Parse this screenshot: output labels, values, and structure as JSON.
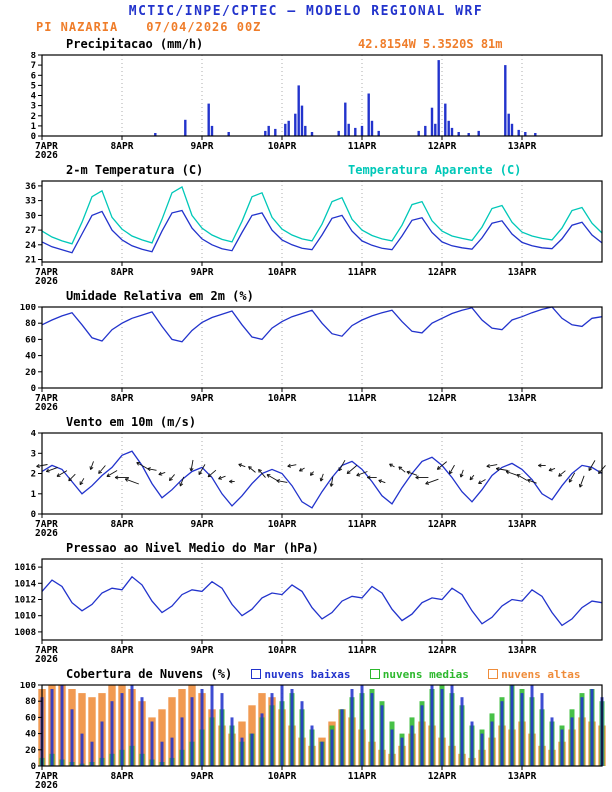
{
  "header": {
    "title": "MCTIC/INPE/CPTEC — MODELO REGIONAL WRF",
    "station": "PI NAZARIA",
    "run": "07/04/2026 00Z"
  },
  "colors": {
    "header_blue": "#2233cc",
    "orange": "#ef7d2a",
    "series_blue": "#2233cc",
    "apparent_cyan": "#00c8b8",
    "cloud_green": "#2db82d",
    "cloud_orange": "#ef8c3a"
  },
  "x_axis": {
    "hours_total": 168,
    "step_hours": 3,
    "day_labels": [
      "7APR",
      "8APR",
      "9APR",
      "10APR",
      "11APR",
      "12APR",
      "13APR"
    ],
    "year_label": "2026"
  },
  "chart_data": [
    {
      "id": "precipitation",
      "type": "bar",
      "title": "Precipitacao (mm/h)",
      "annotation": "42.8154W 5.3520S 81m",
      "ylim": [
        0,
        8
      ],
      "yticks": [
        0,
        1,
        2,
        3,
        4,
        5,
        6,
        7,
        8
      ],
      "color": "#2233cc",
      "bars": [
        [
          34,
          0.3
        ],
        [
          43,
          1.6
        ],
        [
          50,
          3.2
        ],
        [
          51,
          1.0
        ],
        [
          56,
          0.4
        ],
        [
          67,
          0.5
        ],
        [
          68,
          1.0
        ],
        [
          70,
          0.7
        ],
        [
          73,
          1.2
        ],
        [
          74,
          1.5
        ],
        [
          76,
          2.2
        ],
        [
          77,
          5.0
        ],
        [
          78,
          3.0
        ],
        [
          79,
          1.0
        ],
        [
          81,
          0.4
        ],
        [
          89,
          0.5
        ],
        [
          91,
          3.3
        ],
        [
          92,
          1.2
        ],
        [
          94,
          0.8
        ],
        [
          96,
          1.0
        ],
        [
          98,
          4.2
        ],
        [
          99,
          1.5
        ],
        [
          101,
          0.5
        ],
        [
          113,
          0.5
        ],
        [
          115,
          1.0
        ],
        [
          117,
          2.8
        ],
        [
          118,
          1.2
        ],
        [
          119,
          7.5
        ],
        [
          121,
          3.2
        ],
        [
          122,
          1.5
        ],
        [
          123,
          0.8
        ],
        [
          125,
          0.4
        ],
        [
          128,
          0.3
        ],
        [
          131,
          0.5
        ],
        [
          139,
          7.0
        ],
        [
          140,
          2.2
        ],
        [
          141,
          1.2
        ],
        [
          143,
          0.6
        ],
        [
          145,
          0.4
        ],
        [
          148,
          0.3
        ]
      ]
    },
    {
      "id": "temperature",
      "type": "line",
      "title": "2-m Temperatura (C)",
      "ylim": [
        20.5,
        37
      ],
      "yticks": [
        21,
        24,
        27,
        30,
        33,
        36
      ],
      "series": [
        {
          "name": "2-m Temperatura (C)",
          "color": "#2233cc",
          "values": [
            24.6,
            23.6,
            23.0,
            22.4,
            26.2,
            30.0,
            30.8,
            27.0,
            25.0,
            23.8,
            23.1,
            22.6,
            26.8,
            30.5,
            31.0,
            27.4,
            25.2,
            24.0,
            23.2,
            22.8,
            26.5,
            30.0,
            30.5,
            27.0,
            25.0,
            24.0,
            23.3,
            23.0,
            26.0,
            29.4,
            30.0,
            26.8,
            24.8,
            23.9,
            23.3,
            23.0,
            25.8,
            29.0,
            29.5,
            26.5,
            24.6,
            23.8,
            23.4,
            23.1,
            25.4,
            28.4,
            28.9,
            26.2,
            24.5,
            23.8,
            23.4,
            23.2,
            25.2,
            28.0,
            28.6,
            26.0,
            24.4
          ]
        },
        {
          "name": "Temperatura Aparente (C)",
          "color": "#00c8b8",
          "values": [
            26.8,
            25.6,
            24.8,
            24.2,
            28.6,
            33.8,
            35.0,
            29.6,
            27.2,
            25.8,
            25.0,
            24.4,
            29.2,
            34.6,
            35.8,
            30.0,
            27.4,
            26.0,
            25.1,
            24.6,
            28.8,
            33.8,
            34.6,
            29.6,
            27.2,
            26.0,
            25.2,
            24.8,
            28.2,
            32.8,
            33.6,
            29.2,
            27.0,
            25.9,
            25.2,
            24.8,
            28.0,
            32.2,
            32.8,
            28.9,
            26.8,
            25.8,
            25.3,
            24.9,
            27.6,
            31.4,
            32.0,
            28.6,
            26.6,
            25.8,
            25.3,
            25.0,
            27.4,
            31.0,
            31.6,
            28.4,
            26.4
          ]
        }
      ]
    },
    {
      "id": "humidity",
      "type": "line",
      "title": "Umidade Relativa em 2m (%)",
      "ylim": [
        0,
        100
      ],
      "yticks": [
        0,
        20,
        40,
        60,
        80,
        100
      ],
      "series": [
        {
          "name": "Umidade Relativa em 2m (%)",
          "color": "#2233cc",
          "values": [
            78,
            84,
            89,
            93,
            78,
            62,
            58,
            72,
            80,
            86,
            90,
            94,
            76,
            60,
            57,
            71,
            81,
            87,
            91,
            95,
            78,
            63,
            60,
            74,
            82,
            88,
            92,
            96,
            80,
            67,
            64,
            77,
            84,
            89,
            93,
            96,
            82,
            70,
            68,
            80,
            86,
            92,
            96,
            99,
            84,
            74,
            72,
            84,
            88,
            93,
            97,
            100,
            86,
            78,
            76,
            86,
            88
          ]
        }
      ]
    },
    {
      "id": "wind",
      "type": "wind",
      "title": "Vento em 10m (m/s)",
      "ylim": [
        0,
        4
      ],
      "yticks": [
        0,
        1,
        2,
        3,
        4
      ],
      "arrow_color": "#111111",
      "arrow_dirs_deg": [
        190,
        200,
        210,
        225,
        240,
        250,
        230,
        210,
        180,
        160,
        150,
        170,
        200,
        230,
        250,
        260,
        240,
        220,
        200,
        180,
        160,
        140,
        130,
        150,
        170,
        190,
        210,
        230,
        250,
        260,
        240,
        220,
        200,
        180,
        160,
        150,
        140,
        160,
        180,
        200,
        220,
        240,
        250,
        230,
        210,
        190,
        170,
        160,
        150,
        160,
        180,
        200,
        220,
        240,
        250,
        240,
        230
      ],
      "series": [
        {
          "name": "Vento em 10m (m/s)",
          "color": "#2233cc",
          "values": [
            2.1,
            2.4,
            2.2,
            1.6,
            1.0,
            1.4,
            1.9,
            2.3,
            2.9,
            3.1,
            2.4,
            1.5,
            0.8,
            1.2,
            1.7,
            2.1,
            2.3,
            1.8,
            1.0,
            0.4,
            0.9,
            1.5,
            2.0,
            2.2,
            2.0,
            1.4,
            0.6,
            0.3,
            1.1,
            1.8,
            2.4,
            2.6,
            2.2,
            1.6,
            0.9,
            0.5,
            1.3,
            2.0,
            2.6,
            2.8,
            2.4,
            1.8,
            1.1,
            0.6,
            1.2,
            1.9,
            2.3,
            2.5,
            2.2,
            1.7,
            1.0,
            0.7,
            1.4,
            2.0,
            2.4,
            2.3,
            2.0
          ]
        }
      ]
    },
    {
      "id": "pressure",
      "type": "line",
      "title": "Pressao ao Nivel Medio do Mar (hPa)",
      "ylim": [
        1007,
        1017
      ],
      "yticks": [
        1008,
        1010,
        1012,
        1014,
        1016
      ],
      "series": [
        {
          "name": "Pressao ao Nivel Medio do Mar (hPa)",
          "color": "#2233cc",
          "values": [
            1013.0,
            1014.4,
            1013.6,
            1011.6,
            1010.6,
            1011.4,
            1012.8,
            1013.4,
            1013.2,
            1014.8,
            1013.8,
            1011.8,
            1010.4,
            1011.2,
            1012.6,
            1013.2,
            1013.0,
            1014.2,
            1013.4,
            1011.4,
            1010.0,
            1010.8,
            1012.2,
            1012.8,
            1012.6,
            1013.8,
            1013.0,
            1011.0,
            1009.6,
            1010.4,
            1011.8,
            1012.4,
            1012.2,
            1013.6,
            1012.8,
            1010.8,
            1009.4,
            1010.2,
            1011.6,
            1012.2,
            1012.0,
            1013.4,
            1012.6,
            1010.6,
            1009.0,
            1009.8,
            1011.2,
            1012.0,
            1011.8,
            1013.2,
            1012.4,
            1010.4,
            1008.8,
            1009.6,
            1011.0,
            1011.8,
            1011.6
          ]
        }
      ]
    },
    {
      "id": "clouds",
      "type": "cloudbar",
      "title": "Cobertura de Nuvens (%)",
      "ylim": [
        0,
        100
      ],
      "yticks": [
        0,
        20,
        40,
        60,
        80,
        100
      ],
      "series": [
        {
          "name": "nuvens baixas",
          "color": "#2233cc",
          "values": [
            85,
            95,
            100,
            70,
            40,
            30,
            55,
            80,
            90,
            100,
            85,
            55,
            30,
            35,
            60,
            85,
            95,
            100,
            90,
            60,
            35,
            40,
            65,
            90,
            100,
            95,
            80,
            50,
            30,
            45,
            70,
            95,
            100,
            90,
            75,
            45,
            35,
            50,
            75,
            100,
            95,
            100,
            85,
            55,
            40,
            55,
            80,
            100,
            90,
            100,
            90,
            60,
            45,
            60,
            85,
            95,
            85
          ]
        },
        {
          "name": "nuvens medias",
          "color": "#2db82d",
          "values": [
            10,
            15,
            8,
            5,
            3,
            5,
            10,
            15,
            20,
            25,
            15,
            8,
            5,
            10,
            20,
            30,
            45,
            60,
            70,
            50,
            30,
            40,
            60,
            75,
            80,
            90,
            70,
            45,
            30,
            50,
            70,
            85,
            90,
            95,
            80,
            55,
            40,
            60,
            80,
            95,
            100,
            90,
            75,
            50,
            45,
            65,
            85,
            100,
            95,
            85,
            70,
            55,
            50,
            70,
            90,
            95,
            80
          ]
        },
        {
          "name": "nuvens altas",
          "color": "#ef8c3a",
          "values": [
            95,
            100,
            100,
            95,
            90,
            85,
            90,
            100,
            100,
            95,
            80,
            60,
            70,
            85,
            95,
            100,
            90,
            70,
            50,
            40,
            55,
            75,
            90,
            85,
            70,
            50,
            35,
            25,
            35,
            55,
            70,
            60,
            45,
            30,
            20,
            15,
            25,
            40,
            55,
            50,
            35,
            25,
            15,
            10,
            20,
            35,
            50,
            45,
            55,
            40,
            25,
            20,
            30,
            45,
            60,
            55,
            50
          ]
        }
      ]
    }
  ]
}
